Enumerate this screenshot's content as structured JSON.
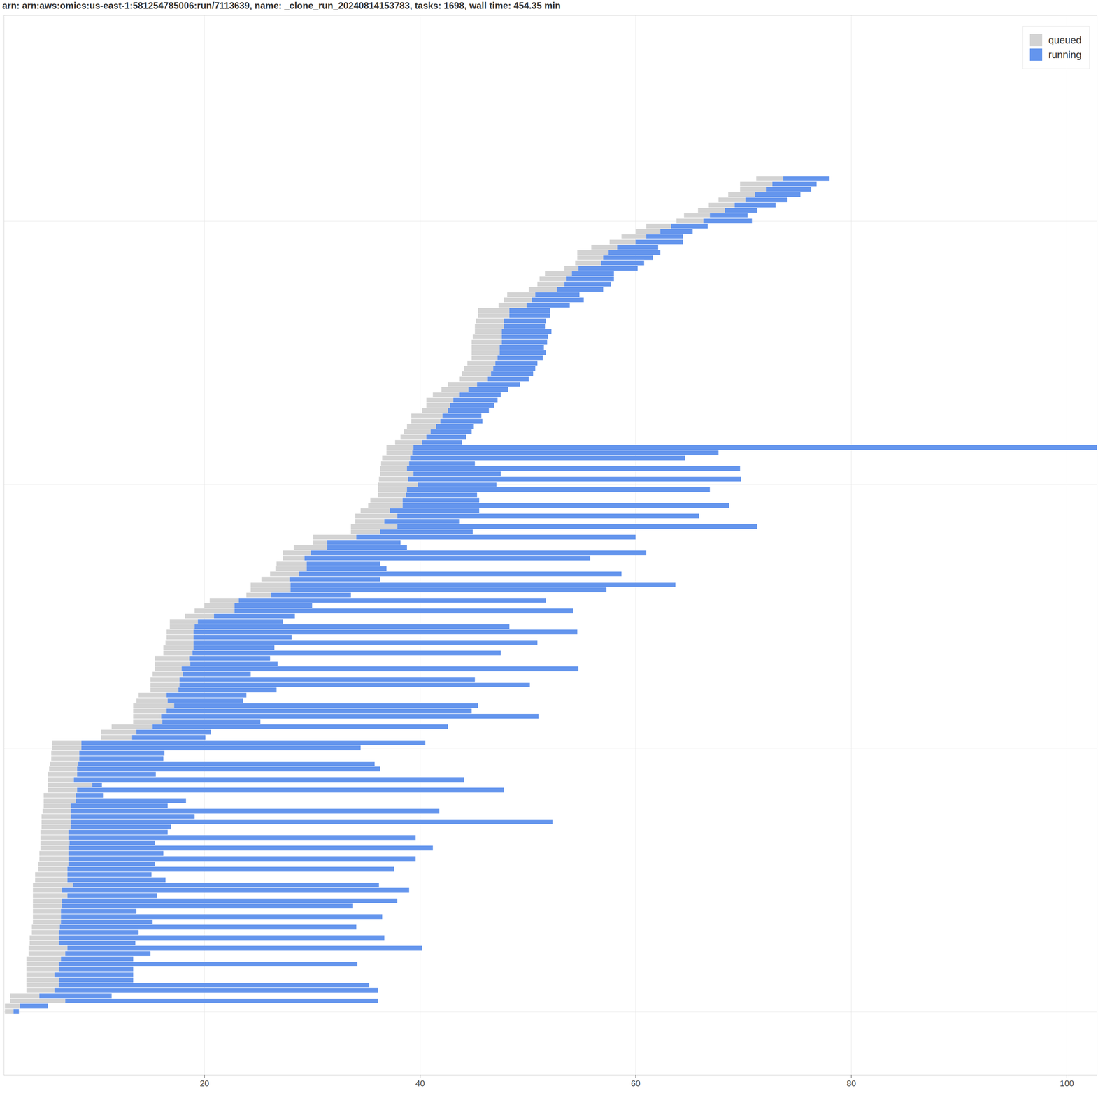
{
  "chart_data": {
    "type": "bar",
    "orientation": "horizontal",
    "title": "arn: arn:aws:omics:us-east-1:581254785006:run/7113639, name: _clone_run_20240814153783, tasks: 1698, wall time: 454.35 min",
    "y": [
      0,
      1,
      2,
      3,
      4,
      5,
      6,
      7,
      8,
      9,
      10,
      11,
      12,
      13,
      14,
      15,
      16,
      17,
      18,
      19,
      20,
      21,
      22,
      23,
      24,
      25,
      26,
      27,
      28,
      29,
      30,
      31,
      32,
      33,
      34,
      35,
      36,
      37,
      38,
      39,
      40,
      41,
      42,
      43,
      44,
      45,
      46,
      47,
      48,
      49,
      50,
      51,
      52,
      53,
      54,
      55,
      56,
      57,
      58,
      59,
      60,
      61,
      62,
      63,
      64,
      65,
      66,
      67,
      68,
      69,
      70,
      71,
      72,
      73,
      74,
      75,
      76,
      77,
      78,
      79,
      80,
      81,
      82,
      83,
      84,
      85,
      86,
      87,
      88,
      89,
      90,
      91,
      92,
      93,
      94,
      95,
      96,
      97,
      98,
      99,
      100,
      101,
      102,
      103,
      104,
      105,
      106,
      107,
      108,
      109,
      110,
      111,
      112,
      113,
      114,
      115,
      116,
      117,
      118,
      119,
      120,
      121,
      122,
      123,
      124,
      125,
      126,
      127,
      128,
      129,
      130,
      131,
      132,
      133,
      134,
      135,
      136,
      137,
      138,
      139,
      140,
      141,
      142,
      143,
      144,
      145,
      146,
      147,
      148,
      149,
      150,
      151,
      152,
      153,
      154,
      155,
      156,
      157,
      158
    ],
    "series": [
      {
        "name": "queued",
        "color": "#d3d3d3",
        "start": [
          1.5,
          1.5,
          2.0,
          2.0,
          3.5,
          3.5,
          3.5,
          3.5,
          3.5,
          3.5,
          3.5,
          3.7,
          3.7,
          3.8,
          3.8,
          4.0,
          4.0,
          4.1,
          4.1,
          4.1,
          4.1,
          4.1,
          4.1,
          4.1,
          4.1,
          4.3,
          4.3,
          4.6,
          4.6,
          4.7,
          4.7,
          4.8,
          4.8,
          4.8,
          4.8,
          4.9,
          4.9,
          4.9,
          5.0,
          5.1,
          5.1,
          5.1,
          5.5,
          5.5,
          5.5,
          5.5,
          5.6,
          5.7,
          5.8,
          5.8,
          5.9,
          5.9,
          10.4,
          10.4,
          11.4,
          13.4,
          13.4,
          13.4,
          13.4,
          13.7,
          13.9,
          15.0,
          15.0,
          15.0,
          15.2,
          15.4,
          15.4,
          15.4,
          16.2,
          16.2,
          16.4,
          16.5,
          16.5,
          16.8,
          16.8,
          18.2,
          19.1,
          20.0,
          20.5,
          23.9,
          24.3,
          24.3,
          25.3,
          26.1,
          26.6,
          26.7,
          27.3,
          27.3,
          28.3,
          30.1,
          30.1,
          33.6,
          33.6,
          34.0,
          34.0,
          34.5,
          35.2,
          35.4,
          36.1,
          36.1,
          36.1,
          36.2,
          36.3,
          36.3,
          36.4,
          36.5,
          36.9,
          36.9,
          37.7,
          38.2,
          38.5,
          38.8,
          39.2,
          39.2,
          40.2,
          40.6,
          40.6,
          41.2,
          42.0,
          42.6,
          43.7,
          43.9,
          44.1,
          44.4,
          44.8,
          44.8,
          44.8,
          44.8,
          44.9,
          45.1,
          45.1,
          45.2,
          45.4,
          45.4,
          47.3,
          47.8,
          48.1,
          50.1,
          50.9,
          51.1,
          51.6,
          53.4,
          54.4,
          54.6,
          54.6,
          55.9,
          57.6,
          58.7,
          60.0,
          61.0,
          63.8,
          64.5,
          65.8,
          66.8,
          67.7,
          68.6,
          69.7,
          69.7,
          71.2
        ],
        "end": [
          2.3,
          2.9,
          7.1,
          4.7,
          6.1,
          6.5,
          6.5,
          6.1,
          6.5,
          6.5,
          6.7,
          7.1,
          7.3,
          6.5,
          6.5,
          6.5,
          6.6,
          6.7,
          6.7,
          6.7,
          6.8,
          6.8,
          7.3,
          6.8,
          7.8,
          7.3,
          7.3,
          7.3,
          7.4,
          7.4,
          7.4,
          7.4,
          7.5,
          7.4,
          7.4,
          7.6,
          7.6,
          7.6,
          7.6,
          7.6,
          8.1,
          8.1,
          8.2,
          9.6,
          7.9,
          8.2,
          8.2,
          8.3,
          8.4,
          8.4,
          8.6,
          8.6,
          13.3,
          13.7,
          15.2,
          16.1,
          16.0,
          16.5,
          17.2,
          16.6,
          16.5,
          17.6,
          17.7,
          17.7,
          18.0,
          17.9,
          18.7,
          18.6,
          18.9,
          19.0,
          19.0,
          19.0,
          19.0,
          19.1,
          19.4,
          20.9,
          22.8,
          22.8,
          23.2,
          26.2,
          28.0,
          28.0,
          27.9,
          28.8,
          29.5,
          29.5,
          29.3,
          29.9,
          31.4,
          31.4,
          34.1,
          36.3,
          37.9,
          36.7,
          37.9,
          37.2,
          38.4,
          38.4,
          38.7,
          38.8,
          39.8,
          38.9,
          39.4,
          38.8,
          39.0,
          39.1,
          39.3,
          39.4,
          40.2,
          40.6,
          41.0,
          41.5,
          41.9,
          42.1,
          42.6,
          42.8,
          43.1,
          43.7,
          44.5,
          45.3,
          46.3,
          46.6,
          46.8,
          47.0,
          47.2,
          47.4,
          47.4,
          47.6,
          47.6,
          47.6,
          47.8,
          47.8,
          48.3,
          48.3,
          49.9,
          50.4,
          50.7,
          52.7,
          53.4,
          53.6,
          54.1,
          54.7,
          56.8,
          57.0,
          57.5,
          58.3,
          60.0,
          61.0,
          62.3,
          63.3,
          66.3,
          66.9,
          68.3,
          69.2,
          70.2,
          71.1,
          72.1,
          72.7,
          73.7
        ]
      },
      {
        "name": "running",
        "color": "#6495ed",
        "start": [
          2.3,
          2.9,
          7.1,
          4.7,
          6.1,
          6.5,
          6.5,
          6.1,
          6.5,
          6.5,
          6.7,
          7.1,
          7.3,
          6.5,
          6.5,
          6.5,
          6.6,
          6.7,
          6.7,
          6.7,
          6.8,
          6.8,
          7.3,
          6.8,
          7.8,
          7.3,
          7.3,
          7.3,
          7.4,
          7.4,
          7.4,
          7.4,
          7.5,
          7.4,
          7.4,
          7.6,
          7.6,
          7.6,
          7.6,
          7.6,
          8.1,
          8.1,
          8.2,
          9.6,
          7.9,
          8.2,
          8.2,
          8.3,
          8.4,
          8.4,
          8.6,
          8.6,
          13.3,
          13.7,
          15.2,
          16.1,
          16.0,
          16.5,
          17.2,
          16.6,
          16.5,
          17.6,
          17.7,
          17.7,
          18.0,
          17.9,
          18.7,
          18.6,
          18.9,
          19.0,
          19.0,
          19.0,
          19.0,
          19.1,
          19.4,
          20.9,
          22.8,
          22.8,
          23.2,
          26.2,
          28.0,
          28.0,
          27.9,
          28.8,
          29.5,
          29.5,
          29.3,
          29.9,
          31.4,
          31.4,
          34.1,
          36.3,
          37.9,
          36.7,
          37.9,
          37.2,
          38.4,
          38.4,
          38.7,
          38.8,
          39.8,
          38.9,
          39.4,
          38.8,
          39.0,
          39.1,
          39.3,
          39.4,
          40.2,
          40.6,
          41.0,
          41.5,
          41.9,
          42.1,
          42.6,
          42.8,
          43.1,
          43.7,
          44.5,
          45.3,
          46.3,
          46.6,
          46.8,
          47.0,
          47.2,
          47.4,
          47.4,
          47.6,
          47.6,
          47.6,
          47.8,
          47.8,
          48.3,
          48.3,
          49.9,
          50.4,
          50.7,
          52.7,
          53.4,
          53.6,
          54.1,
          54.7,
          56.8,
          57.0,
          57.5,
          58.3,
          60.0,
          61.0,
          62.3,
          63.3,
          66.3,
          66.9,
          68.3,
          69.2,
          70.2,
          71.1,
          72.1,
          72.7,
          73.7
        ],
        "end": [
          2.8,
          5.5,
          36.1,
          11.4,
          36.1,
          35.3,
          13.4,
          13.4,
          13.4,
          34.2,
          13.4,
          15.0,
          40.2,
          13.6,
          36.7,
          13.9,
          34.1,
          15.2,
          36.5,
          13.7,
          33.8,
          37.9,
          15.6,
          39.0,
          36.2,
          16.4,
          15.1,
          37.6,
          15.4,
          39.6,
          16.2,
          41.2,
          15.4,
          39.6,
          16.6,
          16.9,
          52.3,
          19.1,
          41.8,
          16.6,
          18.3,
          10.6,
          47.8,
          10.5,
          44.1,
          15.5,
          36.3,
          35.8,
          16.2,
          16.3,
          34.5,
          40.5,
          20.1,
          20.6,
          42.6,
          25.2,
          51.0,
          44.8,
          45.4,
          23.6,
          23.9,
          26.7,
          50.2,
          45.1,
          24.3,
          54.7,
          26.8,
          26.1,
          47.5,
          26.5,
          50.9,
          28.1,
          54.6,
          48.3,
          27.3,
          28.4,
          54.2,
          30.0,
          51.7,
          33.6,
          57.3,
          63.7,
          36.3,
          58.7,
          36.9,
          36.3,
          55.8,
          61.0,
          38.8,
          38.2,
          60.0,
          44.9,
          71.3,
          43.7,
          65.9,
          45.5,
          68.7,
          45.5,
          45.3,
          66.9,
          47.1,
          69.8,
          47.5,
          69.7,
          45.1,
          64.6,
          67.7,
          106,
          43.9,
          44.3,
          44.8,
          45.0,
          45.8,
          45.7,
          46.4,
          46.9,
          47.2,
          47.5,
          48.2,
          49.3,
          50.1,
          50.5,
          50.7,
          50.9,
          51.4,
          51.7,
          51.5,
          51.8,
          51.9,
          52.2,
          51.6,
          51.7,
          52.1,
          52.1,
          53.9,
          55.2,
          54.8,
          57.0,
          57.7,
          58.0,
          58.0,
          60.2,
          60.8,
          61.6,
          62.3,
          62.1,
          64.4,
          64.4,
          65.3,
          66.7,
          70.8,
          70.4,
          71.3,
          73.0,
          74.1,
          75.3,
          76.3,
          76.8,
          78.0
        ]
      }
    ],
    "xlim": [
      1.4,
      102.8
    ],
    "xticks": [
      20,
      40,
      60,
      80,
      100
    ],
    "ylim": [
      -12,
      189
    ],
    "yticks": [
      0,
      50,
      100,
      150
    ],
    "grid": true,
    "legend": "top-right",
    "tick_labels": "x"
  }
}
